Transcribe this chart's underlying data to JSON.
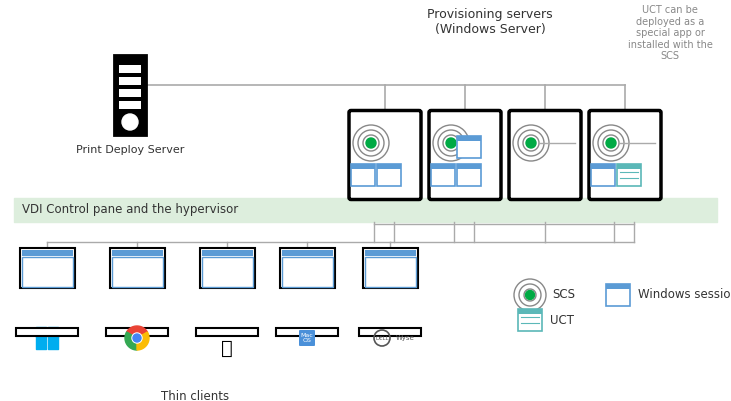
{
  "bg_color": "#ffffff",
  "vdi_band_color": "#ddeedd",
  "vdi_label": "VDI Control pane and the hypervisor",
  "provisioning_label": "Provisioning servers\n(Windows Server)",
  "uct_note": "UCT can be\ndeployed as a\nspecial app or\ninstalled with the\nSCS",
  "print_server_label": "Print Deploy Server",
  "thin_clients_label": "Thin clients",
  "green_color": "#00aa44",
  "blue_color": "#5b9bd5",
  "teal_color": "#5bb8b8",
  "gray_color": "#aaaaaa",
  "dark_color": "#333333",
  "line_color": "#aaaaaa",
  "black": "#000000",
  "win_blue": "#4472c4",
  "chrome_red": "#ea4335",
  "chrome_green": "#34a853",
  "chrome_yellow": "#fbbc05",
  "win_logo_blue": "#00adef",
  "mac_blue": "#4a90d9"
}
